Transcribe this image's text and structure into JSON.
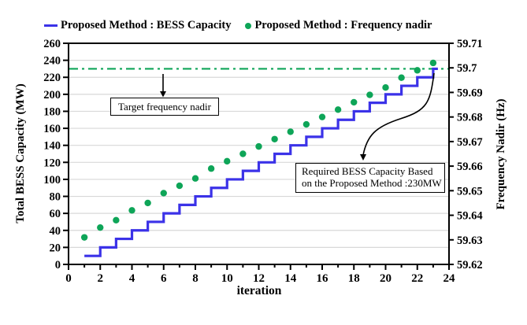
{
  "legend": [
    {
      "label": "Proposed Method : BESS Capacity",
      "marker": "line",
      "color": "#3b32e8"
    },
    {
      "label": "Proposed Method : Frequency nadir",
      "marker": "dot",
      "color": "#0ea558"
    }
  ],
  "annotations": {
    "target": {
      "text": "Target frequency nadir"
    },
    "required": {
      "line1": "Required BESS Capacity Based",
      "line2": "on the Proposed Method :230MW"
    }
  },
  "chart_data": {
    "type": "line",
    "x": [
      1,
      2,
      3,
      4,
      5,
      6,
      7,
      8,
      9,
      10,
      11,
      12,
      13,
      14,
      15,
      16,
      17,
      18,
      19,
      20,
      21,
      22,
      23
    ],
    "series": [
      {
        "name": "Proposed Method : BESS Capacity",
        "style": "step-post",
        "axis": "left",
        "color": "#3b32e8",
        "values": [
          10,
          20,
          30,
          40,
          50,
          60,
          70,
          80,
          90,
          100,
          110,
          120,
          130,
          140,
          150,
          160,
          170,
          180,
          190,
          200,
          210,
          220,
          230
        ]
      },
      {
        "name": "Proposed Method : Frequency nadir",
        "style": "scatter",
        "axis": "right",
        "color": "#0ea558",
        "values": [
          59.631,
          59.635,
          59.638,
          59.642,
          59.645,
          59.649,
          59.652,
          59.655,
          59.659,
          59.662,
          59.665,
          59.668,
          59.671,
          59.674,
          59.677,
          59.68,
          59.683,
          59.686,
          59.689,
          59.692,
          59.696,
          59.699,
          59.702
        ]
      }
    ],
    "target_line": {
      "label": "Target frequency nadir",
      "left_axis_value": 230,
      "right_axis_value": 59.7,
      "style": "dash-dot",
      "color": "#0ea558"
    },
    "result": {
      "required_bess_capacity_mw": 230,
      "found_at_iteration": 23
    },
    "axes": {
      "x": {
        "label": "iteration",
        "min": 0,
        "max": 24,
        "major_step": 2,
        "minor_step": 1
      },
      "left": {
        "label": "Total BESS Capacity (MW)",
        "min": 0,
        "max": 260,
        "step": 20
      },
      "right": {
        "label": "Frequency Nadir (Hz)",
        "min": 59.62,
        "max": 59.71,
        "step": 0.01
      }
    },
    "grid": "horizontal",
    "legend_position": "top",
    "colors": {
      "grid": "#d8d8d8",
      "axis": "#000000"
    }
  }
}
